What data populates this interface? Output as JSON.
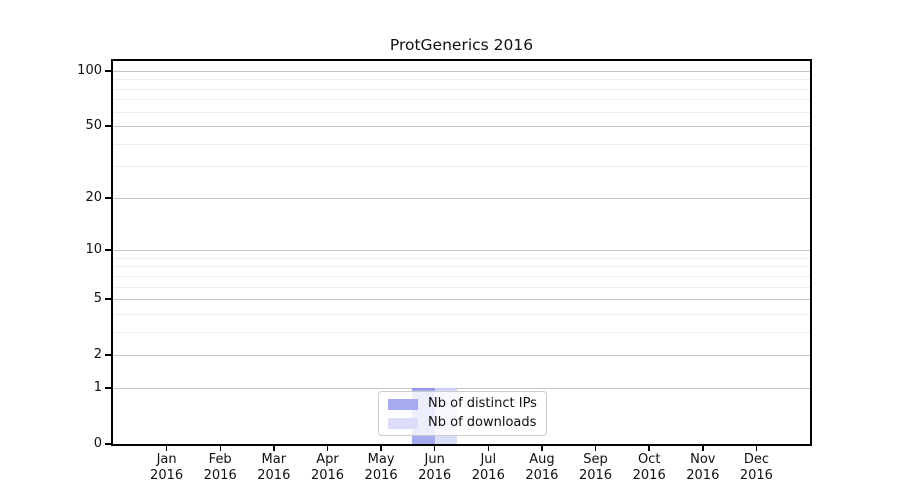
{
  "chart_data": {
    "type": "bar",
    "title": "ProtGenerics 2016",
    "categories": [
      "Jan",
      "Feb",
      "Mar",
      "Apr",
      "May",
      "Jun",
      "Jul",
      "Aug",
      "Sep",
      "Oct",
      "Nov",
      "Dec"
    ],
    "category_year": "2016",
    "series": [
      {
        "name": "Nb of distinct IPs",
        "color": "#a6aaf1",
        "edge_color": "#9498ec",
        "values": [
          0,
          0,
          0,
          0,
          0,
          1,
          0,
          0,
          0,
          0,
          0,
          0
        ]
      },
      {
        "name": "Nb of downloads",
        "color": "#dcddf8",
        "edge_color": "#cbccf2",
        "values": [
          0,
          0,
          0,
          0,
          0,
          1,
          0,
          0,
          0,
          0,
          0,
          0
        ]
      }
    ],
    "xlabel": "",
    "ylabel": "",
    "y_scale": "log1p",
    "y_major_ticks": [
      0,
      1,
      2,
      5,
      10,
      20,
      50,
      100
    ],
    "y_minor_gridlines": [
      3,
      4,
      6,
      7,
      8,
      9,
      30,
      40,
      60,
      70,
      80,
      90
    ],
    "y_axis_top_value": 113,
    "grid": "horizontal",
    "legend_position": "bottom-center",
    "colors": {
      "major_grid": "#c5c5c5",
      "minor_grid": "#ededed",
      "frame": "#000000",
      "background": "#ffffff"
    }
  }
}
